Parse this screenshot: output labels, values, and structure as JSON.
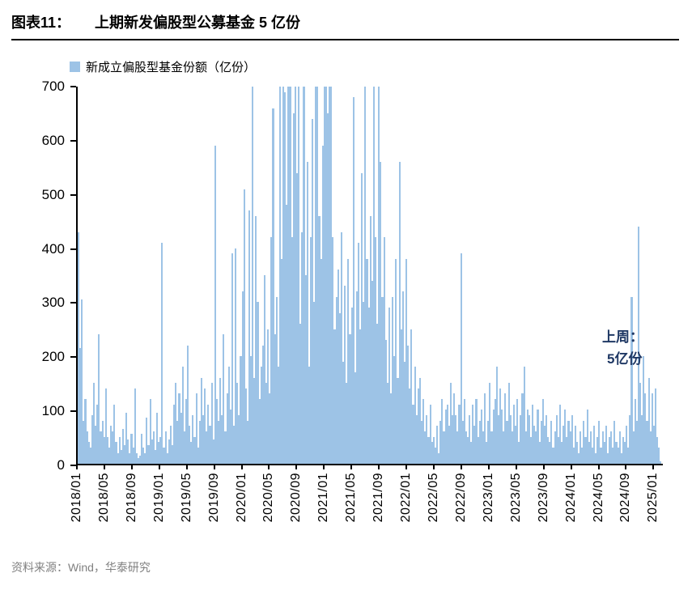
{
  "header": {
    "label": "图表11：",
    "title": "上期新发偏股型公募基金 5 亿份"
  },
  "legend": {
    "label": "新成立偏股型基金份额（亿份）"
  },
  "annotation": {
    "line1": "上周：",
    "line2": "5亿份",
    "color": "#1F3864"
  },
  "footer": {
    "source": "资料来源：Wind，华泰研究"
  },
  "chart_data": {
    "type": "bar",
    "title": "新成立偏股型基金份额（亿份）",
    "ylabel": "",
    "xlabel": "",
    "ylim": [
      0,
      700
    ],
    "yticks": [
      0,
      100,
      200,
      300,
      400,
      500,
      600,
      700
    ],
    "grid": false,
    "legend_position": "top-left",
    "bar_color": "#9DC3E6",
    "x_unit": "week",
    "start": "2018/01",
    "end": "2025/02",
    "note": "weekly new equity-biased mutual fund issuance, values clipped at 700; last week = 5",
    "xtick_labels": [
      "2018/01",
      "2018/05",
      "2018/09",
      "2019/01",
      "2019/05",
      "2019/09",
      "2020/01",
      "2020/05",
      "2020/09",
      "2021/01",
      "2021/05",
      "2021/09",
      "2022/01",
      "2022/05",
      "2022/09",
      "2023/01",
      "2023/05",
      "2023/09",
      "2024/01",
      "2024/05",
      "2024/09",
      "2025/01"
    ],
    "weeks_per_xtick": 16,
    "values": [
      430,
      215,
      305,
      80,
      120,
      60,
      40,
      30,
      90,
      150,
      70,
      110,
      240,
      60,
      80,
      50,
      140,
      50,
      30,
      70,
      60,
      110,
      40,
      20,
      50,
      25,
      65,
      35,
      95,
      45,
      20,
      55,
      30,
      140,
      20,
      10,
      15,
      55,
      30,
      20,
      85,
      35,
      120,
      45,
      60,
      25,
      95,
      40,
      50,
      410,
      30,
      60,
      20,
      45,
      70,
      35,
      110,
      150,
      80,
      130,
      95,
      180,
      60,
      120,
      220,
      70,
      40,
      90,
      50,
      130,
      30,
      80,
      160,
      90,
      140,
      60,
      110,
      70,
      150,
      45,
      590,
      120,
      80,
      160,
      90,
      240,
      60,
      130,
      180,
      100,
      390,
      70,
      400,
      150,
      90,
      200,
      320,
      510,
      140,
      80,
      470,
      200,
      700,
      160,
      460,
      300,
      120,
      180,
      220,
      350,
      150,
      250,
      130,
      420,
      660,
      240,
      310,
      180,
      700,
      380,
      700,
      690,
      480,
      700,
      700,
      420,
      650,
      700,
      540,
      700,
      260,
      430,
      700,
      350,
      560,
      180,
      420,
      640,
      300,
      700,
      700,
      460,
      380,
      590,
      700,
      700,
      650,
      700,
      700,
      420,
      250,
      310,
      360,
      280,
      430,
      190,
      330,
      150,
      380,
      240,
      290,
      680,
      170,
      320,
      410,
      250,
      540,
      300,
      700,
      380,
      290,
      460,
      340,
      700,
      420,
      260,
      700,
      560,
      310,
      420,
      230,
      150,
      290,
      130,
      310,
      200,
      380,
      160,
      560,
      250,
      320,
      190,
      380,
      220,
      140,
      250,
      110,
      180,
      90,
      140,
      160,
      80,
      120,
      60,
      90,
      50,
      110,
      40,
      50,
      30,
      70,
      20,
      80,
      120,
      60,
      100,
      110,
      70,
      150,
      90,
      130,
      90,
      60,
      110,
      390,
      80,
      120,
      60,
      50,
      90,
      40,
      110,
      70,
      120,
      50,
      80,
      100,
      60,
      130,
      40,
      80,
      150,
      60,
      100,
      120,
      180,
      90,
      140,
      100,
      60,
      130,
      80,
      150,
      90,
      60,
      110,
      70,
      120,
      40,
      90,
      130,
      180,
      60,
      100,
      90,
      50,
      110,
      70,
      60,
      100,
      40,
      80,
      120,
      70,
      90,
      50,
      40,
      80,
      30,
      60,
      90,
      50,
      110,
      40,
      70,
      100,
      50,
      80,
      60,
      90,
      30,
      70,
      40,
      20,
      60,
      30,
      80,
      50,
      100,
      40,
      60,
      30,
      70,
      20,
      50,
      80,
      30,
      60,
      40,
      70,
      20,
      50,
      60,
      30,
      80,
      40,
      30,
      60,
      20,
      50,
      40,
      70,
      30,
      90,
      310,
      60,
      120,
      80,
      440,
      150,
      90,
      200,
      130,
      80,
      160,
      60,
      130,
      70,
      140,
      50,
      30,
      5
    ]
  }
}
